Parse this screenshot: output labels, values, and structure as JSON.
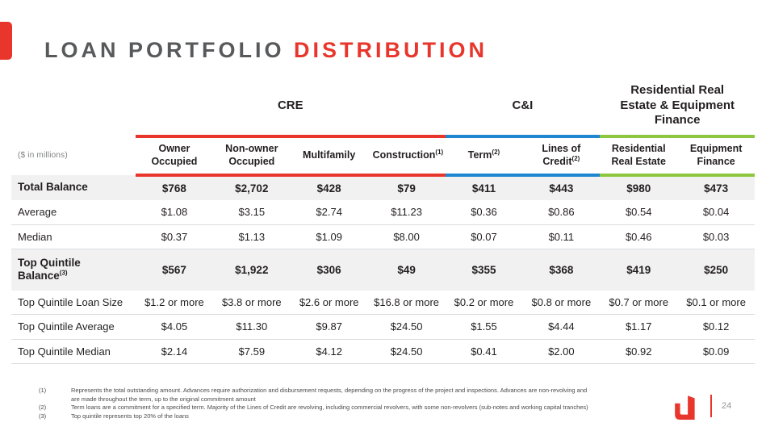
{
  "slide": {
    "title_gray": "LOAN PORTFOLIO ",
    "title_red": "DISTRIBUTION",
    "page_number": "24"
  },
  "colors": {
    "cre": "#e8362c",
    "ci": "#1f86d0",
    "rre_ef": "#8dc63f"
  },
  "table": {
    "unit_label": "($ in millions)",
    "groups": [
      {
        "label": "CRE",
        "color": "#e8362c",
        "span": 4
      },
      {
        "label": "C&I",
        "color": "#1f86d0",
        "span": 2
      },
      {
        "label": "Residential Real Estate & Equipment Finance",
        "color": "#8dc63f",
        "span": 2
      }
    ],
    "columns": [
      {
        "label": "Owner Occupied",
        "sup": "",
        "group": 0
      },
      {
        "label": "Non-owner Occupied",
        "sup": "",
        "group": 0
      },
      {
        "label": "Multifamily",
        "sup": "",
        "group": 0
      },
      {
        "label": "Construction",
        "sup": "(1)",
        "group": 0
      },
      {
        "label": "Term",
        "sup": "(2)",
        "group": 1
      },
      {
        "label": "Lines of Credit",
        "sup": "(2)",
        "group": 1
      },
      {
        "label": "Residential Real Estate",
        "sup": "",
        "group": 2
      },
      {
        "label": "Equipment Finance",
        "sup": "",
        "group": 2
      }
    ],
    "rows": [
      {
        "label": "Total Balance",
        "sup": "",
        "bold": true,
        "shaded": true,
        "values": [
          "$768",
          "$2,702",
          "$428",
          "$79",
          "$411",
          "$443",
          "$980",
          "$473"
        ]
      },
      {
        "label": "Average",
        "sup": "",
        "bold": false,
        "shaded": false,
        "values": [
          "$1.08",
          "$3.15",
          "$2.74",
          "$11.23",
          "$0.36",
          "$0.86",
          "$0.54",
          "$0.04"
        ]
      },
      {
        "label": "Median",
        "sup": "",
        "bold": false,
        "shaded": false,
        "values": [
          "$0.37",
          "$1.13",
          "$1.09",
          "$8.00",
          "$0.07",
          "$0.11",
          "$0.46",
          "$0.03"
        ]
      },
      {
        "label": "Top Quintile Balance",
        "sup": "(3)",
        "bold": true,
        "shaded": true,
        "values": [
          "$567",
          "$1,922",
          "$306",
          "$49",
          "$355",
          "$368",
          "$419",
          "$250"
        ]
      },
      {
        "label": "Top Quintile Loan Size",
        "sup": "",
        "bold": false,
        "shaded": false,
        "values": [
          "$1.2 or more",
          "$3.8 or more",
          "$2.6 or more",
          "$16.8 or more",
          "$0.2 or more",
          "$0.8 or more",
          "$0.7 or more",
          "$0.1 or more"
        ]
      },
      {
        "label": "Top Quintile Average",
        "sup": "",
        "bold": false,
        "shaded": false,
        "values": [
          "$4.05",
          "$11.30",
          "$9.87",
          "$24.50",
          "$1.55",
          "$4.44",
          "$1.17",
          "$0.12"
        ]
      },
      {
        "label": "Top Quintile Median",
        "sup": "",
        "bold": false,
        "shaded": false,
        "values": [
          "$2.14",
          "$7.59",
          "$4.12",
          "$24.50",
          "$0.41",
          "$2.00",
          "$0.92",
          "$0.09"
        ]
      }
    ]
  },
  "footnotes": [
    {
      "marker": "(1)",
      "text": "Represents the total outstanding amount. Advances require authorization and disbursement requests, depending on the progress of the project and inspections. Advances are non-revolving and are made throughout the term, up to the original commitment amount"
    },
    {
      "marker": "(2)",
      "text": "Term loans are a commitment for a specified term. Majority of the Lines of Credit are revolving, including commercial revolvers, with some non-revolvers (sub-notes and working capital tranches)"
    },
    {
      "marker": "(3)",
      "text": "Top quintile represents top 20% of the loans"
    }
  ]
}
